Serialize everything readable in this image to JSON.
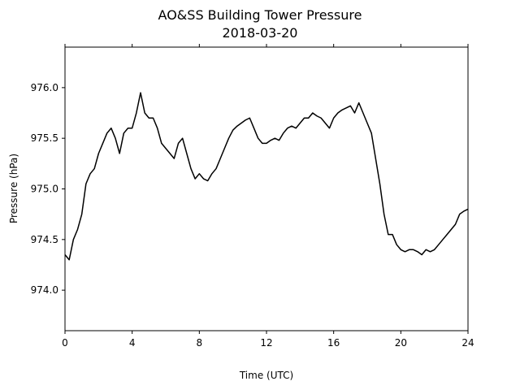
{
  "chart_data": {
    "type": "line",
    "title": "AO&SS Building Tower Pressure",
    "subtitle": "2018-03-20",
    "xlabel": "Time (UTC)",
    "ylabel": "Pressure (hPa)",
    "xlim": [
      0,
      24
    ],
    "ylim": [
      973.6,
      976.4
    ],
    "xticks": [
      0,
      4,
      8,
      12,
      16,
      20,
      24
    ],
    "xtick_labels": [
      "0",
      "4",
      "8",
      "12",
      "16",
      "20",
      "24"
    ],
    "yticks": [
      974.0,
      974.5,
      975.0,
      975.5,
      976.0
    ],
    "ytick_labels": [
      "974.0",
      "974.5",
      "975.0",
      "975.5",
      "976.0"
    ],
    "grid": false,
    "line_color": "#000000",
    "series": [
      {
        "x": [
          0,
          0.25,
          0.5,
          0.75,
          1,
          1.25,
          1.5,
          1.75,
          2,
          2.25,
          2.5,
          2.75,
          3,
          3.25,
          3.5,
          3.75,
          4,
          4.25,
          4.5,
          4.75,
          5,
          5.25,
          5.5,
          5.75,
          6,
          6.25,
          6.5,
          6.75,
          7,
          7.25,
          7.5,
          7.75,
          8,
          8.25,
          8.5,
          8.75,
          9,
          9.25,
          9.5,
          9.75,
          10,
          10.25,
          10.5,
          10.75,
          11,
          11.25,
          11.5,
          11.75,
          12,
          12.25,
          12.5,
          12.75,
          13,
          13.25,
          13.5,
          13.75,
          14,
          14.25,
          14.5,
          14.75,
          15,
          15.25,
          15.5,
          15.75,
          16,
          16.25,
          16.5,
          16.75,
          17,
          17.25,
          17.5,
          17.75,
          18,
          18.25,
          18.5,
          18.75,
          19,
          19.25,
          19.5,
          19.75,
          20,
          20.25,
          20.5,
          20.75,
          21,
          21.25,
          21.5,
          21.75,
          22,
          22.25,
          22.5,
          22.75,
          23,
          23.25,
          23.5,
          23.75,
          24
        ],
        "y": [
          974.35,
          974.3,
          974.5,
          974.6,
          974.75,
          975.05,
          975.15,
          975.2,
          975.35,
          975.45,
          975.55,
          975.6,
          975.5,
          975.35,
          975.55,
          975.6,
          975.6,
          975.75,
          975.95,
          975.75,
          975.7,
          975.7,
          975.6,
          975.45,
          975.4,
          975.35,
          975.3,
          975.45,
          975.5,
          975.35,
          975.2,
          975.1,
          975.15,
          975.1,
          975.08,
          975.15,
          975.2,
          975.3,
          975.4,
          975.5,
          975.58,
          975.62,
          975.65,
          975.68,
          975.7,
          975.6,
          975.5,
          975.45,
          975.45,
          975.48,
          975.5,
          975.48,
          975.55,
          975.6,
          975.62,
          975.6,
          975.65,
          975.7,
          975.7,
          975.75,
          975.72,
          975.7,
          975.65,
          975.6,
          975.7,
          975.75,
          975.78,
          975.8,
          975.82,
          975.75,
          975.85,
          975.75,
          975.65,
          975.55,
          975.3,
          975.05,
          974.75,
          974.55,
          974.55,
          974.45,
          974.4,
          974.38,
          974.4,
          974.4,
          974.38,
          974.35,
          974.4,
          974.38,
          974.4,
          974.45,
          974.5,
          974.55,
          974.6,
          974.65,
          974.75,
          974.78,
          974.8
        ]
      }
    ]
  }
}
